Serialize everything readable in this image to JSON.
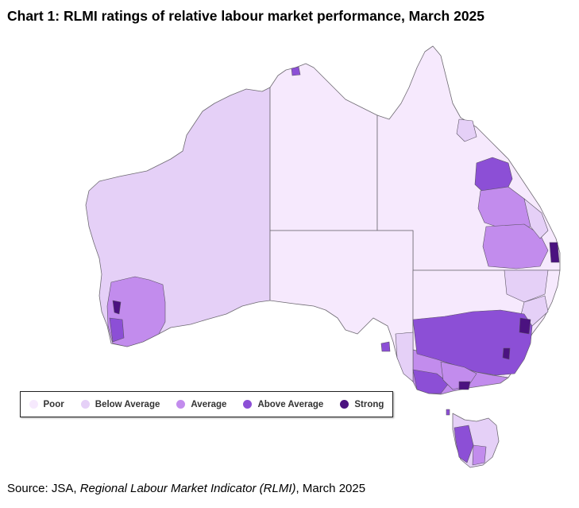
{
  "title": "Chart 1: RLMI ratings of relative labour market performance, March 2025",
  "legend": [
    {
      "label": "Poor",
      "color": "#f6e9fd"
    },
    {
      "label": "Below Average",
      "color": "#e5d0f7"
    },
    {
      "label": "Average",
      "color": "#c28ced"
    },
    {
      "label": "Above Average",
      "color": "#8c4fd6"
    },
    {
      "label": "Strong",
      "color": "#4b1280"
    }
  ],
  "source": {
    "prefix": "Source: JSA, ",
    "italic": "Regional Labour Market Indicator (RLMI)",
    "suffix": ", March 2025"
  },
  "regions": [
    {
      "name": "Western Australia",
      "rating": "Below Average"
    },
    {
      "name": "Northern Territory",
      "rating": "Poor"
    },
    {
      "name": "Queensland",
      "rating": "Poor"
    },
    {
      "name": "South Australia",
      "rating": "Poor"
    },
    {
      "name": "New South Wales",
      "rating": "Poor"
    },
    {
      "name": "Victoria",
      "rating": "Average"
    },
    {
      "name": "Tasmania",
      "rating": "Below Average"
    }
  ]
}
